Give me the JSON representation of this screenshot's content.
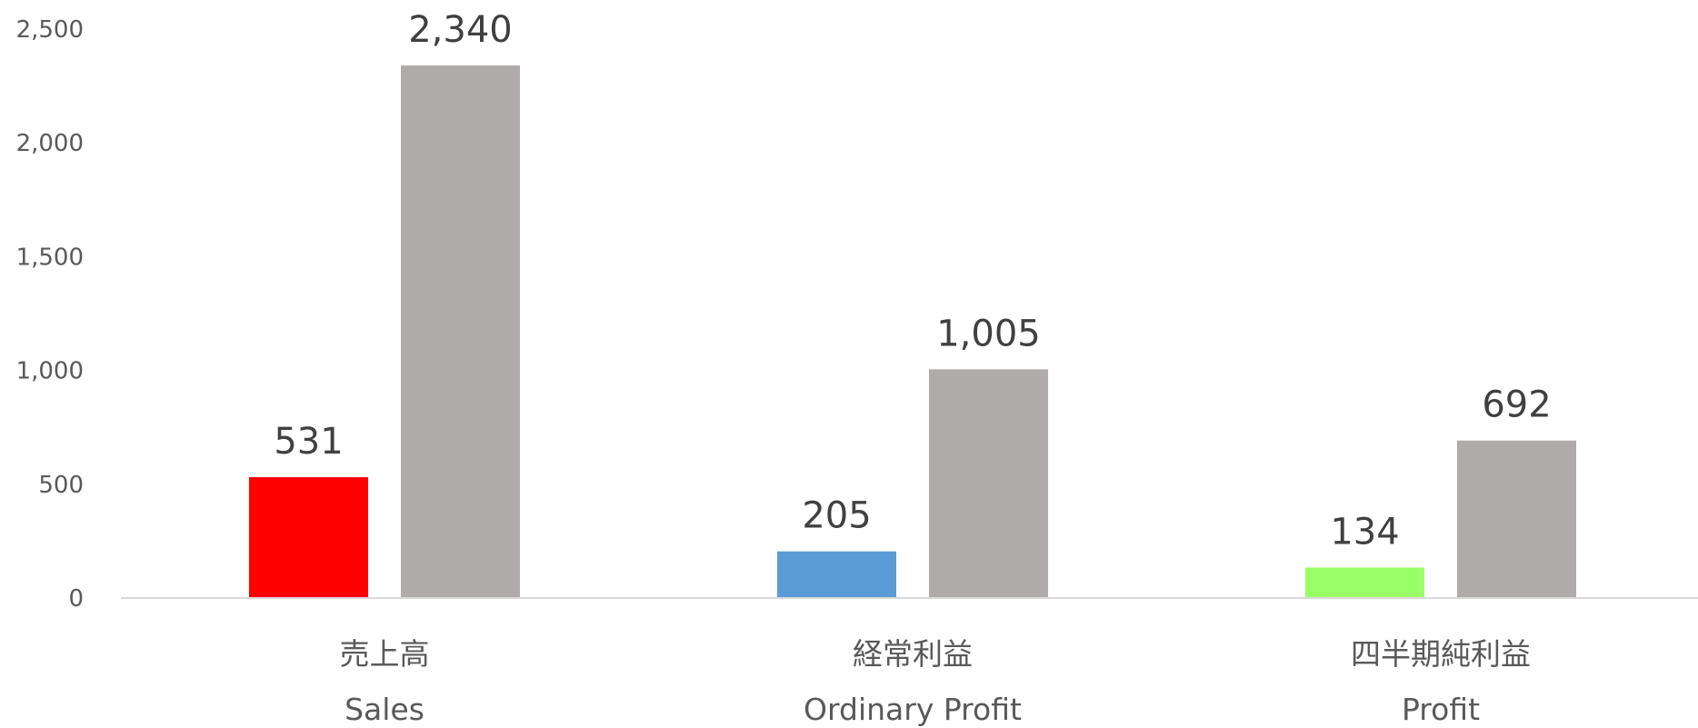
{
  "chart_data": {
    "type": "bar",
    "categories": [
      {
        "label_ja": "売上高",
        "label_en": "Sales"
      },
      {
        "label_ja": "経常利益",
        "label_en": "Ordinary Profit"
      },
      {
        "label_ja": "四半期純利益",
        "label_en": "Profit"
      }
    ],
    "series": [
      {
        "values": [
          531,
          205,
          134
        ],
        "colors": [
          "#FF0000",
          "#5B9BD5",
          "#99FF66"
        ]
      },
      {
        "values": [
          2340,
          1005,
          692
        ],
        "colors": [
          "#AFABAB",
          "#AFABAB",
          "#AFABAB"
        ]
      }
    ],
    "data_labels": [
      [
        "531",
        "205",
        "134"
      ],
      [
        "2,340",
        "1,005",
        "692"
      ]
    ],
    "y_ticks": [
      {
        "value": 0,
        "label": "0"
      },
      {
        "value": 500,
        "label": "500"
      },
      {
        "value": 1000,
        "label": "1,000"
      },
      {
        "value": 1500,
        "label": "1,500"
      },
      {
        "value": 2000,
        "label": "2,000"
      },
      {
        "value": 2500,
        "label": "2,500"
      }
    ],
    "ylim": [
      0,
      2500
    ],
    "grid": false,
    "legend": "none",
    "title": "",
    "xlabel": "",
    "ylabel": "",
    "axis_color": "#D9D9D9"
  }
}
